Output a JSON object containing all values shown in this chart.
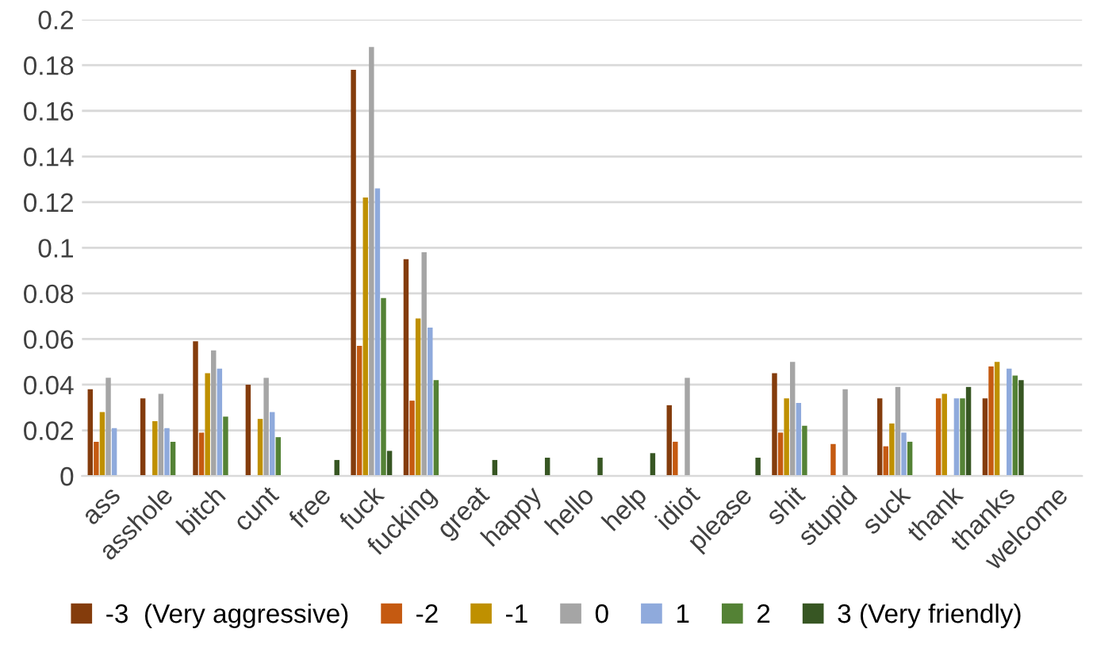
{
  "chart_data": {
    "type": "bar",
    "categories": [
      "ass",
      "asshole",
      "bitch",
      "cunt",
      "free",
      "fuck",
      "fucking",
      "great",
      "happy",
      "hello",
      "help",
      "idiot",
      "please",
      "shit",
      "stupid",
      "suck",
      "thank",
      "thanks",
      "welcome"
    ],
    "series": [
      {
        "name": "-3  (Very aggressive)",
        "color": "#843c0c",
        "values": [
          0.038,
          0.034,
          0.059,
          0.04,
          0,
          0.178,
          0.095,
          0,
          0,
          0,
          0,
          0.031,
          0,
          0.045,
          0,
          0.034,
          0,
          0.034,
          0
        ]
      },
      {
        "name": "-2",
        "color": "#c55a11",
        "values": [
          0.015,
          0,
          0.019,
          0,
          0,
          0.057,
          0.033,
          0,
          0,
          0,
          0,
          0.015,
          0,
          0.019,
          0.014,
          0.013,
          0.034,
          0.048,
          0
        ]
      },
      {
        "name": "-1",
        "color": "#bf9000",
        "values": [
          0.028,
          0.024,
          0.045,
          0.025,
          0,
          0.122,
          0.069,
          0,
          0,
          0,
          0,
          0,
          0,
          0.034,
          0,
          0.023,
          0.036,
          0.05,
          0
        ]
      },
      {
        "name": "0",
        "color": "#a5a5a5",
        "values": [
          0.043,
          0.036,
          0.055,
          0.043,
          0,
          0.188,
          0.098,
          0,
          0,
          0,
          0,
          0.043,
          0,
          0.05,
          0.038,
          0.039,
          0,
          0,
          0
        ]
      },
      {
        "name": "1",
        "color": "#8faadc",
        "values": [
          0.021,
          0.021,
          0.047,
          0.028,
          0,
          0.126,
          0.065,
          0,
          0,
          0,
          0,
          0,
          0,
          0.032,
          0,
          0.019,
          0.034,
          0.047,
          0
        ]
      },
      {
        "name": "2",
        "color": "#548235",
        "values": [
          0,
          0.015,
          0.026,
          0.017,
          0,
          0.078,
          0.042,
          0,
          0,
          0,
          0,
          0,
          0,
          0.022,
          0,
          0.015,
          0.034,
          0.044,
          0
        ]
      },
      {
        "name": "3 (Very friendly)",
        "color": "#375623",
        "values": [
          0,
          0,
          0,
          0,
          0.007,
          0.011,
          0,
          0.007,
          0.008,
          0.008,
          0.01,
          0,
          0.008,
          0,
          0,
          0,
          0.039,
          0.042,
          0
        ]
      }
    ],
    "ylim": [
      0,
      0.2
    ],
    "yticks": [
      0,
      0.02,
      0.04,
      0.06,
      0.08,
      0.1,
      0.12,
      0.14,
      0.16,
      0.18,
      0.2
    ],
    "grid": "y",
    "legend": "bottom"
  }
}
